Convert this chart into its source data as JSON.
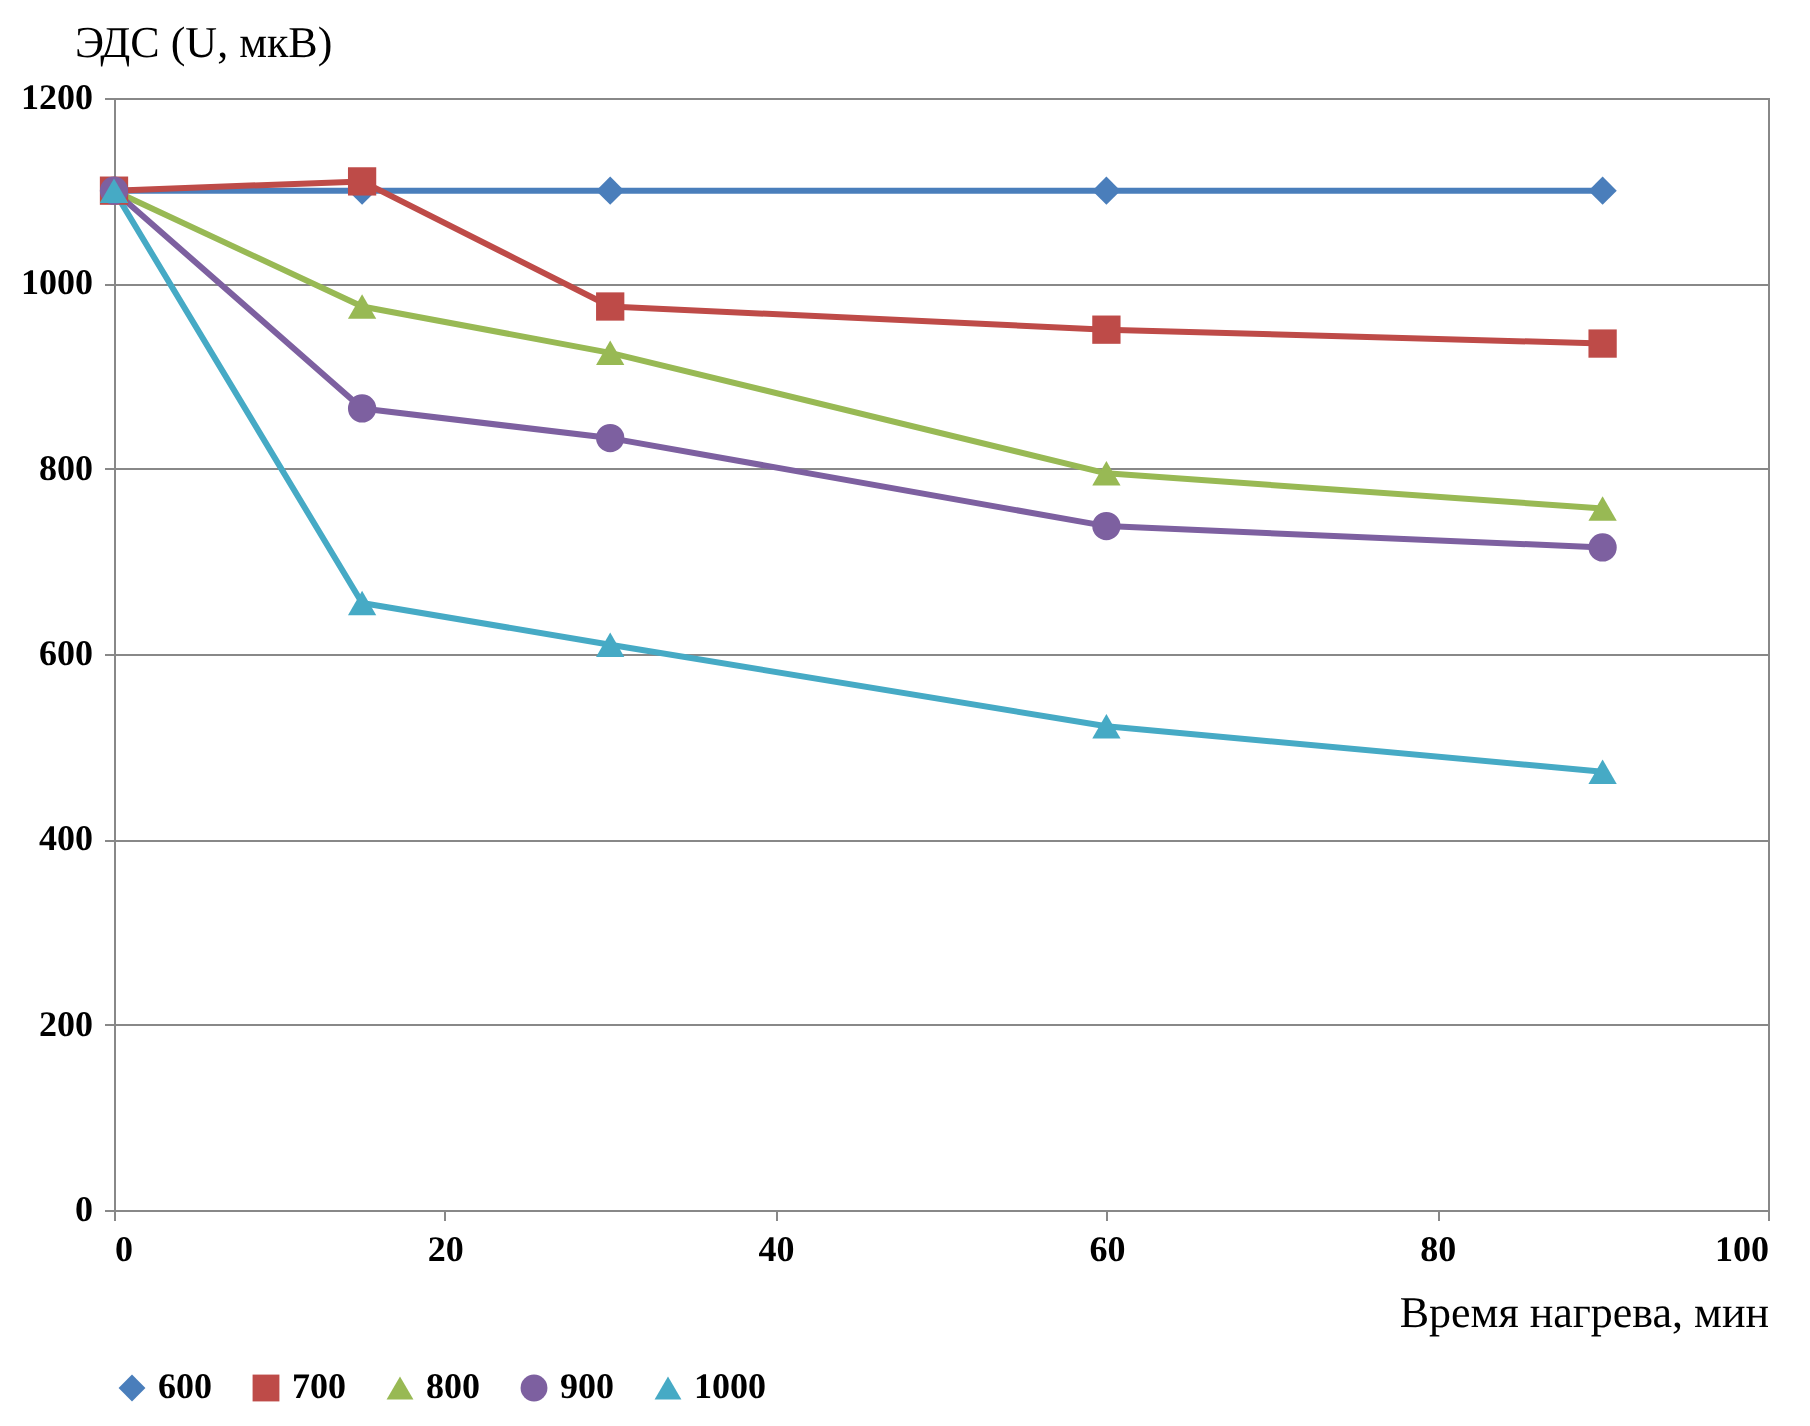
{
  "chart_data": {
    "type": "line",
    "xlabel": "Время нагрева, мин",
    "ylabel": "ЭДС (U, мкВ)",
    "x": [
      0,
      15,
      30,
      60,
      90
    ],
    "xlim": [
      0,
      100
    ],
    "xticks": [
      0,
      20,
      40,
      60,
      80,
      100
    ],
    "ylim": [
      0,
      1200
    ],
    "yticks": [
      0,
      200,
      400,
      600,
      800,
      1000,
      1200
    ],
    "grid": "y",
    "legend": "bottom",
    "line_style": "solid",
    "series": [
      {
        "name": "600",
        "color": "#4a7ebb",
        "marker": "diamond",
        "values": [
          1100,
          1100,
          1100,
          1100,
          1100
        ]
      },
      {
        "name": "700",
        "color": "#be4b48",
        "marker": "square",
        "values": [
          1100,
          1110,
          975,
          950,
          935
        ]
      },
      {
        "name": "800",
        "color": "#98b954",
        "marker": "triangle",
        "values": [
          1100,
          975,
          925,
          795,
          757
        ]
      },
      {
        "name": "900",
        "color": "#7d60a0",
        "marker": "circle",
        "values": [
          1100,
          865,
          833,
          738,
          715
        ]
      },
      {
        "name": "1000",
        "color": "#46aac5",
        "marker": "triangle",
        "values": [
          1100,
          655,
          610,
          522,
          473
        ]
      }
    ]
  }
}
